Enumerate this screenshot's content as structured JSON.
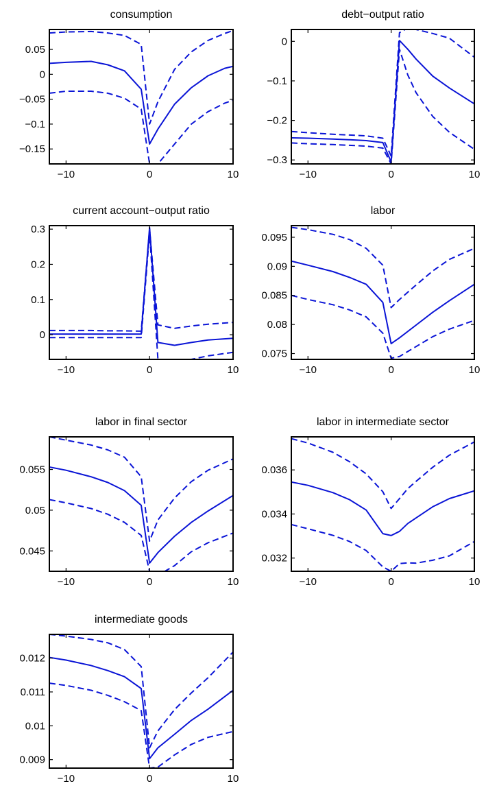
{
  "chart_data": [
    {
      "type": "line",
      "title": "consumption",
      "xlim": [
        -12,
        10
      ],
      "ylim": [
        -0.18,
        0.09
      ],
      "xticks": [
        -10,
        0,
        10
      ],
      "xtick_labels": [
        "−10",
        "0",
        "10"
      ],
      "yticks": [
        -0.15,
        -0.1,
        -0.05,
        0,
        0.05
      ],
      "ytick_labels": [
        "−0.15",
        "−0.1",
        "−0.05",
        "0",
        "0.05"
      ],
      "x": [
        -12,
        -10,
        -7,
        -5,
        -3,
        -1,
        0,
        1,
        3,
        5,
        7,
        9,
        10
      ],
      "series": [
        {
          "style": "solid",
          "values": [
            0.022,
            0.024,
            0.026,
            0.019,
            0.007,
            -0.03,
            -0.14,
            -0.11,
            -0.06,
            -0.027,
            -0.003,
            0.012,
            0.016
          ]
        },
        {
          "style": "dashed",
          "values": [
            0.083,
            0.085,
            0.086,
            0.083,
            0.078,
            0.06,
            -0.1,
            -0.055,
            0.01,
            0.045,
            0.068,
            0.082,
            0.088
          ]
        },
        {
          "style": "dashed",
          "values": [
            -0.038,
            -0.034,
            -0.034,
            -0.038,
            -0.048,
            -0.07,
            -0.18,
            -0.18,
            -0.14,
            -0.1,
            -0.075,
            -0.058,
            -0.052
          ]
        }
      ]
    },
    {
      "type": "line",
      "title": "debt−output ratio",
      "xlim": [
        -12,
        10
      ],
      "ylim": [
        -0.31,
        0.03
      ],
      "xticks": [
        -10,
        0,
        10
      ],
      "xtick_labels": [
        "−10",
        "0",
        "10"
      ],
      "yticks": [
        -0.3,
        -0.2,
        -0.1,
        0
      ],
      "ytick_labels": [
        "−0.3",
        "−0.2",
        "−0.1",
        "0"
      ],
      "x": [
        -12,
        -10,
        -7,
        -5,
        -3,
        -1,
        0,
        1,
        2,
        3,
        5,
        7,
        10
      ],
      "series": [
        {
          "style": "solid",
          "values": [
            -0.244,
            -0.245,
            -0.247,
            -0.249,
            -0.251,
            -0.256,
            -0.305,
            0.002,
            -0.02,
            -0.045,
            -0.088,
            -0.118,
            -0.158
          ]
        },
        {
          "style": "dashed",
          "values": [
            -0.228,
            -0.231,
            -0.235,
            -0.237,
            -0.239,
            -0.245,
            -0.29,
            0.022,
            0.034,
            0.03,
            0.02,
            0.008,
            -0.04
          ]
        },
        {
          "style": "dashed",
          "values": [
            -0.257,
            -0.259,
            -0.261,
            -0.263,
            -0.265,
            -0.27,
            -0.31,
            -0.02,
            -0.085,
            -0.13,
            -0.19,
            -0.23,
            -0.273
          ]
        }
      ]
    },
    {
      "type": "line",
      "title": "current account−output ratio",
      "xlim": [
        -12,
        10
      ],
      "ylim": [
        -0.07,
        0.31
      ],
      "xticks": [
        -10,
        0,
        10
      ],
      "xtick_labels": [
        "−10",
        "0",
        "10"
      ],
      "yticks": [
        0,
        0.1,
        0.2,
        0.3
      ],
      "ytick_labels": [
        "0",
        "0.1",
        "0.2",
        "0.3"
      ],
      "x": [
        -12,
        -10,
        -7,
        -5,
        -3,
        -1,
        0,
        1,
        3,
        5,
        7,
        10
      ],
      "series": [
        {
          "style": "solid",
          "values": [
            0.002,
            0.002,
            0.002,
            0.002,
            0.002,
            0.002,
            0.305,
            -0.022,
            -0.03,
            -0.022,
            -0.015,
            -0.01
          ]
        },
        {
          "style": "dashed",
          "values": [
            0.012,
            0.012,
            0.012,
            0.011,
            0.011,
            0.01,
            0.3,
            0.028,
            0.018,
            0.025,
            0.03,
            0.035
          ]
        },
        {
          "style": "dashed",
          "values": [
            -0.008,
            -0.008,
            -0.008,
            -0.008,
            -0.008,
            -0.008,
            0.29,
            -0.07,
            -0.07,
            -0.07,
            -0.06,
            -0.05
          ]
        }
      ]
    },
    {
      "type": "line",
      "title": "labor",
      "xlim": [
        -12,
        10
      ],
      "ylim": [
        0.074,
        0.097
      ],
      "xticks": [
        -10,
        0,
        10
      ],
      "xtick_labels": [
        "−10",
        "0",
        "10"
      ],
      "yticks": [
        0.075,
        0.08,
        0.085,
        0.09,
        0.095
      ],
      "ytick_labels": [
        "0.075",
        "0.08",
        "0.085",
        "0.09",
        "0.095"
      ],
      "x": [
        -12,
        -10,
        -7,
        -5,
        -3,
        -1,
        0,
        1,
        3,
        5,
        7,
        10
      ],
      "series": [
        {
          "style": "solid",
          "values": [
            0.0909,
            0.0902,
            0.0891,
            0.0881,
            0.0869,
            0.0838,
            0.0767,
            0.0777,
            0.0799,
            0.0821,
            0.0841,
            0.0869
          ]
        },
        {
          "style": "dashed",
          "values": [
            0.0967,
            0.0963,
            0.0955,
            0.0946,
            0.0931,
            0.0902,
            0.0829,
            0.0843,
            0.0868,
            0.0892,
            0.0912,
            0.0931
          ]
        },
        {
          "style": "dashed",
          "values": [
            0.085,
            0.0843,
            0.0834,
            0.0825,
            0.0813,
            0.0785,
            0.0742,
            0.0745,
            0.0762,
            0.0779,
            0.0792,
            0.0807
          ]
        }
      ]
    },
    {
      "type": "line",
      "title": "labor in final sector",
      "xlim": [
        -12,
        10
      ],
      "ylim": [
        0.0425,
        0.059
      ],
      "xticks": [
        -10,
        0,
        10
      ],
      "xtick_labels": [
        "−10",
        "0",
        "10"
      ],
      "yticks": [
        0.045,
        0.05,
        0.055
      ],
      "ytick_labels": [
        "0.045",
        "0.05",
        "0.055"
      ],
      "x": [
        -12,
        -10,
        -7,
        -5,
        -3,
        -1,
        0,
        1,
        3,
        5,
        7,
        10
      ],
      "series": [
        {
          "style": "solid",
          "values": [
            0.0553,
            0.0549,
            0.0541,
            0.0534,
            0.0524,
            0.0506,
            0.0435,
            0.0448,
            0.0468,
            0.0485,
            0.0499,
            0.0518
          ]
        },
        {
          "style": "dashed",
          "values": [
            0.059,
            0.0586,
            0.058,
            0.0574,
            0.0565,
            0.0541,
            0.0462,
            0.0488,
            0.0515,
            0.0535,
            0.0549,
            0.0563
          ]
        },
        {
          "style": "dashed",
          "values": [
            0.0513,
            0.0509,
            0.0502,
            0.0495,
            0.0485,
            0.0469,
            0.0425,
            0.042,
            0.0432,
            0.0449,
            0.046,
            0.0472
          ]
        }
      ]
    },
    {
      "type": "line",
      "title": "labor in intermediate sector",
      "xlim": [
        -12,
        10
      ],
      "ylim": [
        0.0314,
        0.0375
      ],
      "xticks": [
        -10,
        0,
        10
      ],
      "xtick_labels": [
        "−10",
        "0",
        "10"
      ],
      "yticks": [
        0.032,
        0.034,
        0.036
      ],
      "ytick_labels": [
        "0.032",
        "0.034",
        "0.036"
      ],
      "x": [
        -12,
        -10,
        -7,
        -5,
        -3,
        -1,
        0,
        1,
        2,
        3,
        5,
        7,
        10
      ],
      "series": [
        {
          "style": "solid",
          "values": [
            0.03545,
            0.0353,
            0.03497,
            0.03465,
            0.03418,
            0.03311,
            0.03302,
            0.03321,
            0.03357,
            0.03382,
            0.03433,
            0.0347,
            0.03505
          ]
        },
        {
          "style": "dashed",
          "values": [
            0.03742,
            0.03722,
            0.0368,
            0.03637,
            0.03582,
            0.03501,
            0.03425,
            0.0347,
            0.03515,
            0.03548,
            0.03612,
            0.03667,
            0.03727
          ]
        },
        {
          "style": "dashed",
          "values": [
            0.03352,
            0.03333,
            0.03303,
            0.03275,
            0.03234,
            0.0316,
            0.0314,
            0.03175,
            0.03178,
            0.03177,
            0.0319,
            0.0321,
            0.03275
          ]
        }
      ]
    },
    {
      "type": "line",
      "title": "intermediate goods",
      "xlim": [
        -12,
        10
      ],
      "ylim": [
        0.00875,
        0.0127
      ],
      "xticks": [
        -10,
        0,
        10
      ],
      "xtick_labels": [
        "−10",
        "0",
        "10"
      ],
      "yticks": [
        0.009,
        0.01,
        0.011,
        0.012
      ],
      "ytick_labels": [
        "0.009",
        "0.01",
        "0.011",
        "0.012"
      ],
      "x": [
        -12,
        -10,
        -7,
        -5,
        -3,
        -1,
        0,
        1,
        3,
        5,
        7,
        10
      ],
      "series": [
        {
          "style": "solid",
          "values": [
            0.01202,
            0.01194,
            0.01178,
            0.01163,
            0.01145,
            0.0111,
            0.00903,
            0.00935,
            0.00975,
            0.01016,
            0.01049,
            0.01105
          ]
        },
        {
          "style": "dashed",
          "values": [
            0.0127,
            0.01265,
            0.01255,
            0.01245,
            0.01225,
            0.01175,
            0.00935,
            0.00985,
            0.01048,
            0.01097,
            0.01142,
            0.01218
          ]
        },
        {
          "style": "dashed",
          "values": [
            0.01126,
            0.01119,
            0.01105,
            0.0109,
            0.01071,
            0.01045,
            0.00875,
            0.00878,
            0.00914,
            0.00945,
            0.00966,
            0.00983
          ]
        }
      ]
    }
  ],
  "colors": {
    "series": "#0a14d6",
    "axes": "#000000",
    "background": "#ffffff"
  }
}
